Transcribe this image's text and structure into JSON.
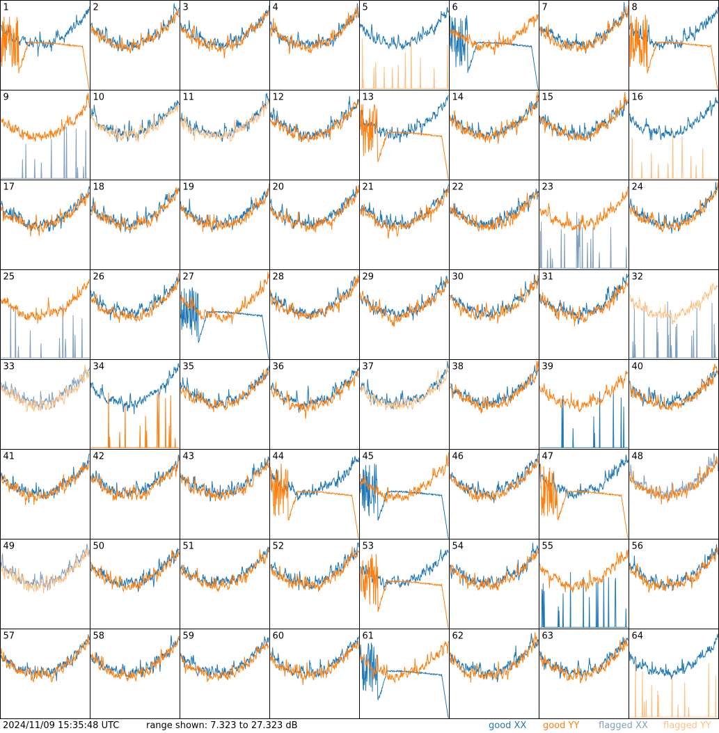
{
  "footer": {
    "timestamp": "2024/11/09 15:35:48 UTC",
    "range_text": "range shown: 7.323 to 27.323 dB",
    "legend": {
      "good_xx": "good XX",
      "good_yy": "good YY",
      "flagged_xx": "flagged XX",
      "flagged_yy": "flagged YY"
    }
  },
  "colors": {
    "good_xx": "#1f77b4",
    "good_yy": "#ff7f0e",
    "flagged_xx": "#7f9fbf",
    "flagged_yy": "#ffbf7f",
    "border": "#000000",
    "background": "#ffffff"
  },
  "chart_data": {
    "type": "line",
    "title": "",
    "units": "dB",
    "ylim": [
      7.323,
      27.323
    ],
    "grid": false,
    "layout": "8x8 panels",
    "legend_placement": "bottom-right",
    "series_names": [
      "good XX",
      "good YY",
      "flagged XX",
      "flagged YY"
    ],
    "panels": [
      {
        "id": "1",
        "xx": "bandpass",
        "yy": "dead",
        "xx_flag": false,
        "yy_flag": false
      },
      {
        "id": "2",
        "xx": "bandpass",
        "yy": "bandpass",
        "xx_flag": false,
        "yy_flag": false
      },
      {
        "id": "3",
        "xx": "bandpass",
        "yy": "bandpass",
        "xx_flag": false,
        "yy_flag": false
      },
      {
        "id": "4",
        "xx": "bandpass",
        "yy": "bandpass",
        "xx_flag": false,
        "yy_flag": false
      },
      {
        "id": "5",
        "xx": "bandpass",
        "yy": "spiky",
        "xx_flag": false,
        "yy_flag": true
      },
      {
        "id": "6",
        "xx": "dead",
        "yy": "bandpass",
        "xx_flag": false,
        "yy_flag": false
      },
      {
        "id": "7",
        "xx": "bandpass",
        "yy": "bandpass",
        "xx_flag": false,
        "yy_flag": false
      },
      {
        "id": "8",
        "xx": "bandpass",
        "yy": "dead",
        "xx_flag": false,
        "yy_flag": false
      },
      {
        "id": "9",
        "xx": "spiky",
        "yy": "bandpass",
        "xx_flag": true,
        "yy_flag": false
      },
      {
        "id": "10",
        "xx": "bandpass",
        "yy": "bandpass",
        "xx_flag": false,
        "yy_flag": true
      },
      {
        "id": "11",
        "xx": "bandpass",
        "yy": "bandpass",
        "xx_flag": false,
        "yy_flag": true
      },
      {
        "id": "12",
        "xx": "bandpass",
        "yy": "bandpass",
        "xx_flag": false,
        "yy_flag": false
      },
      {
        "id": "13",
        "xx": "bandpass",
        "yy": "dead",
        "xx_flag": false,
        "yy_flag": false
      },
      {
        "id": "14",
        "xx": "bandpass",
        "yy": "bandpass",
        "xx_flag": false,
        "yy_flag": false
      },
      {
        "id": "15",
        "xx": "bandpass",
        "yy": "bandpass",
        "xx_flag": false,
        "yy_flag": false
      },
      {
        "id": "16",
        "xx": "bandpass",
        "yy": "spiky",
        "xx_flag": false,
        "yy_flag": true
      },
      {
        "id": "17",
        "xx": "bandpass",
        "yy": "bandpass",
        "xx_flag": false,
        "yy_flag": false
      },
      {
        "id": "18",
        "xx": "bandpass",
        "yy": "bandpass",
        "xx_flag": false,
        "yy_flag": false
      },
      {
        "id": "19",
        "xx": "bandpass",
        "yy": "bandpass",
        "xx_flag": false,
        "yy_flag": false
      },
      {
        "id": "20",
        "xx": "bandpass",
        "yy": "bandpass",
        "xx_flag": false,
        "yy_flag": false
      },
      {
        "id": "21",
        "xx": "bandpass",
        "yy": "bandpass",
        "xx_flag": false,
        "yy_flag": false
      },
      {
        "id": "22",
        "xx": "bandpass",
        "yy": "bandpass",
        "xx_flag": false,
        "yy_flag": false
      },
      {
        "id": "23",
        "xx": "spiky",
        "yy": "bandpass",
        "xx_flag": true,
        "yy_flag": false
      },
      {
        "id": "24",
        "xx": "bandpass",
        "yy": "bandpass",
        "xx_flag": false,
        "yy_flag": false
      },
      {
        "id": "25",
        "xx": "spiky",
        "yy": "bandpass",
        "xx_flag": true,
        "yy_flag": false
      },
      {
        "id": "26",
        "xx": "bandpass",
        "yy": "bandpass",
        "xx_flag": false,
        "yy_flag": false
      },
      {
        "id": "27",
        "xx": "dead",
        "yy": "bandpass",
        "xx_flag": false,
        "yy_flag": false
      },
      {
        "id": "28",
        "xx": "bandpass",
        "yy": "bandpass",
        "xx_flag": false,
        "yy_flag": false
      },
      {
        "id": "29",
        "xx": "bandpass",
        "yy": "bandpass",
        "xx_flag": false,
        "yy_flag": false
      },
      {
        "id": "30",
        "xx": "bandpass",
        "yy": "bandpass",
        "xx_flag": false,
        "yy_flag": false
      },
      {
        "id": "31",
        "xx": "bandpass",
        "yy": "bandpass",
        "xx_flag": false,
        "yy_flag": false
      },
      {
        "id": "32",
        "xx": "spiky",
        "yy": "bandpass",
        "xx_flag": true,
        "yy_flag": true
      },
      {
        "id": "33",
        "xx": "bandpass",
        "yy": "bandpass",
        "xx_flag": true,
        "yy_flag": true
      },
      {
        "id": "34",
        "xx": "bandpass",
        "yy": "spiky",
        "xx_flag": false,
        "yy_flag": false
      },
      {
        "id": "35",
        "xx": "bandpass",
        "yy": "bandpass",
        "xx_flag": false,
        "yy_flag": false
      },
      {
        "id": "36",
        "xx": "bandpass",
        "yy": "bandpass",
        "xx_flag": false,
        "yy_flag": false
      },
      {
        "id": "37",
        "xx": "bandpass",
        "yy": "bandpass",
        "xx_flag": false,
        "yy_flag": true
      },
      {
        "id": "38",
        "xx": "bandpass",
        "yy": "bandpass",
        "xx_flag": false,
        "yy_flag": false
      },
      {
        "id": "39",
        "xx": "spiky",
        "yy": "bandpass",
        "xx_flag": false,
        "yy_flag": false
      },
      {
        "id": "40",
        "xx": "bandpass",
        "yy": "bandpass",
        "xx_flag": false,
        "yy_flag": false
      },
      {
        "id": "41",
        "xx": "bandpass",
        "yy": "bandpass",
        "xx_flag": false,
        "yy_flag": false
      },
      {
        "id": "42",
        "xx": "bandpass",
        "yy": "bandpass",
        "xx_flag": false,
        "yy_flag": false
      },
      {
        "id": "43",
        "xx": "bandpass",
        "yy": "bandpass",
        "xx_flag": false,
        "yy_flag": false
      },
      {
        "id": "44",
        "xx": "bandpass",
        "yy": "dead",
        "xx_flag": false,
        "yy_flag": false
      },
      {
        "id": "45",
        "xx": "dead",
        "yy": "bandpass",
        "xx_flag": false,
        "yy_flag": false
      },
      {
        "id": "46",
        "xx": "bandpass",
        "yy": "bandpass",
        "xx_flag": false,
        "yy_flag": false
      },
      {
        "id": "47",
        "xx": "bandpass",
        "yy": "dead",
        "xx_flag": false,
        "yy_flag": false
      },
      {
        "id": "48",
        "xx": "bandpass",
        "yy": "bandpass",
        "xx_flag": true,
        "yy_flag": false
      },
      {
        "id": "49",
        "xx": "bandpass",
        "yy": "bandpass",
        "xx_flag": true,
        "yy_flag": true
      },
      {
        "id": "50",
        "xx": "bandpass",
        "yy": "bandpass",
        "xx_flag": false,
        "yy_flag": false
      },
      {
        "id": "51",
        "xx": "bandpass",
        "yy": "bandpass",
        "xx_flag": false,
        "yy_flag": false
      },
      {
        "id": "52",
        "xx": "bandpass",
        "yy": "bandpass",
        "xx_flag": false,
        "yy_flag": false
      },
      {
        "id": "53",
        "xx": "bandpass",
        "yy": "dead",
        "xx_flag": false,
        "yy_flag": false
      },
      {
        "id": "54",
        "xx": "bandpass",
        "yy": "bandpass",
        "xx_flag": false,
        "yy_flag": false
      },
      {
        "id": "55",
        "xx": "spiky",
        "yy": "bandpass",
        "xx_flag": false,
        "yy_flag": false
      },
      {
        "id": "56",
        "xx": "bandpass",
        "yy": "bandpass",
        "xx_flag": false,
        "yy_flag": false
      },
      {
        "id": "57",
        "xx": "bandpass",
        "yy": "bandpass",
        "xx_flag": false,
        "yy_flag": false
      },
      {
        "id": "58",
        "xx": "bandpass",
        "yy": "bandpass",
        "xx_flag": false,
        "yy_flag": false
      },
      {
        "id": "59",
        "xx": "bandpass",
        "yy": "bandpass",
        "xx_flag": false,
        "yy_flag": false
      },
      {
        "id": "60",
        "xx": "bandpass",
        "yy": "bandpass",
        "xx_flag": false,
        "yy_flag": false
      },
      {
        "id": "61",
        "xx": "dead",
        "yy": "bandpass",
        "xx_flag": false,
        "yy_flag": false
      },
      {
        "id": "62",
        "xx": "bandpass",
        "yy": "bandpass",
        "xx_flag": false,
        "yy_flag": false
      },
      {
        "id": "63",
        "xx": "bandpass",
        "yy": "bandpass",
        "xx_flag": false,
        "yy_flag": false
      },
      {
        "id": "64",
        "xx": "bandpass",
        "yy": "spiky",
        "xx_flag": false,
        "yy_flag": true
      }
    ]
  }
}
